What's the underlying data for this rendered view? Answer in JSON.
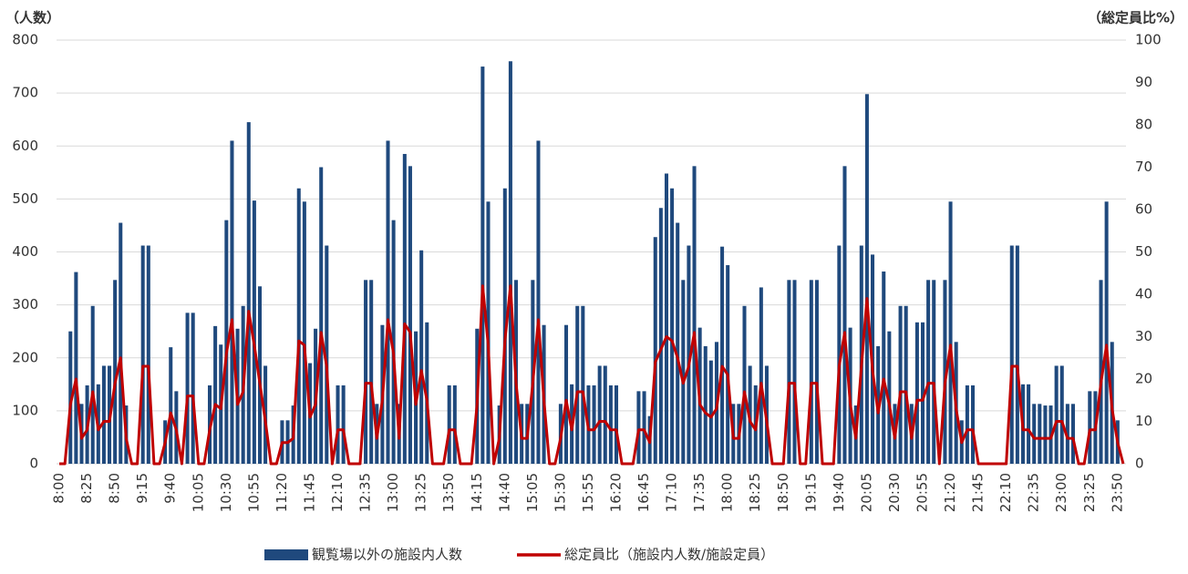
{
  "chart_data": {
    "type": "bar",
    "y_label": "（人数）",
    "y2_label": "（総定員比%）",
    "categories": [
      "8:00",
      null,
      null,
      null,
      null,
      "8:25",
      null,
      null,
      null,
      null,
      "8:50",
      null,
      null,
      null,
      null,
      "9:15",
      null,
      null,
      null,
      null,
      "9:40",
      null,
      null,
      null,
      null,
      "10:05",
      null,
      null,
      null,
      null,
      "10:30",
      null,
      null,
      null,
      null,
      "10:55",
      null,
      null,
      null,
      null,
      "11:20",
      null,
      null,
      null,
      null,
      "11:45",
      null,
      null,
      null,
      null,
      "12:10",
      null,
      null,
      null,
      null,
      "12:35",
      null,
      null,
      null,
      null,
      "13:00",
      null,
      null,
      null,
      null,
      "13:25",
      null,
      null,
      null,
      null,
      "13:50",
      null,
      null,
      null,
      null,
      "14:15",
      null,
      null,
      null,
      null,
      "14:40",
      null,
      null,
      null,
      null,
      "15:05",
      null,
      null,
      null,
      null,
      "15:30",
      null,
      null,
      null,
      null,
      "15:55",
      null,
      null,
      null,
      null,
      "16:20",
      null,
      null,
      null,
      null,
      "16:45",
      null,
      null,
      null,
      null,
      "17:10",
      null,
      null,
      null,
      null,
      "17:35",
      null,
      null,
      null,
      null,
      "18:00",
      null,
      null,
      null,
      null,
      "18:25",
      null,
      null,
      null,
      null,
      "18:50",
      null,
      null,
      null,
      null,
      "19:15",
      null,
      null,
      null,
      null,
      "19:40",
      null,
      null,
      null,
      null,
      "20:05",
      null,
      null,
      null,
      null,
      "20:30",
      null,
      null,
      null,
      null,
      "20:55",
      null,
      null,
      null,
      null,
      "21:20",
      null,
      null,
      null,
      null,
      "21:45",
      null,
      null,
      null,
      null,
      "22:10",
      null,
      null,
      null,
      null,
      "22:35",
      null,
      null,
      null,
      null,
      "23:00",
      null,
      null,
      null,
      null,
      "23:25",
      null,
      null,
      null,
      null,
      "23:50",
      null
    ],
    "series": [
      {
        "name": "観覧場以外の施設内人数",
        "type": "bar",
        "color": "#1f497d",
        "values": [
          0,
          0,
          250,
          362,
          113,
          148,
          298,
          150,
          185,
          185,
          347,
          455,
          110,
          0,
          0,
          412,
          412,
          0,
          0,
          82,
          220,
          137,
          0,
          285,
          285,
          0,
          0,
          148,
          260,
          225,
          460,
          610,
          255,
          298,
          645,
          497,
          335,
          185,
          0,
          0,
          82,
          82,
          110,
          520,
          495,
          190,
          255,
          560,
          412,
          0,
          148,
          148,
          0,
          0,
          0,
          347,
          347,
          113,
          262,
          610,
          460,
          113,
          585,
          562,
          250,
          403,
          267,
          0,
          0,
          0,
          148,
          148,
          0,
          0,
          0,
          255,
          750,
          495,
          0,
          110,
          520,
          760,
          347,
          113,
          113,
          347,
          610,
          262,
          0,
          0,
          113,
          262,
          150,
          298,
          298,
          148,
          148,
          185,
          185,
          148,
          148,
          0,
          0,
          0,
          137,
          137,
          90,
          428,
          483,
          548,
          520,
          455,
          347,
          412,
          562,
          257,
          222,
          195,
          230,
          410,
          375,
          113,
          113,
          298,
          185,
          148,
          333,
          185,
          0,
          0,
          0,
          347,
          347,
          0,
          0,
          347,
          347,
          0,
          0,
          0,
          412,
          562,
          257,
          110,
          412,
          698,
          395,
          222,
          363,
          250,
          113,
          298,
          298,
          113,
          267,
          267,
          347,
          347,
          0,
          347,
          495,
          230,
          82,
          148,
          148,
          0,
          0,
          0,
          0,
          0,
          0,
          412,
          412,
          150,
          150,
          113,
          113,
          110,
          110,
          185,
          185,
          113,
          113,
          0,
          0,
          137,
          137,
          347,
          495,
          230,
          82,
          0
        ]
      },
      {
        "name": "総定員比（施設内人数/施設定員）",
        "type": "line",
        "axis": "y2",
        "color": "#c00000",
        "values": [
          0,
          0,
          14,
          20,
          6,
          8,
          17,
          8,
          10,
          10,
          19,
          25,
          6,
          0,
          0,
          23,
          23,
          0,
          0,
          5,
          12,
          8,
          0,
          16,
          16,
          0,
          0,
          8,
          14,
          13,
          26,
          34,
          14,
          17,
          36,
          28,
          19,
          10,
          0,
          0,
          5,
          5,
          6,
          29,
          28,
          11,
          14,
          31,
          23,
          0,
          8,
          8,
          0,
          0,
          0,
          19,
          19,
          6,
          15,
          34,
          26,
          6,
          33,
          31,
          14,
          22,
          15,
          0,
          0,
          0,
          8,
          8,
          0,
          0,
          0,
          14,
          42,
          28,
          0,
          6,
          29,
          42,
          19,
          6,
          6,
          19,
          34,
          15,
          0,
          0,
          6,
          15,
          8,
          17,
          17,
          8,
          8,
          10,
          10,
          8,
          8,
          0,
          0,
          0,
          8,
          8,
          5,
          24,
          27,
          30,
          29,
          25,
          19,
          23,
          31,
          14,
          12,
          11,
          13,
          23,
          21,
          6,
          6,
          17,
          10,
          8,
          19,
          10,
          0,
          0,
          0,
          19,
          19,
          0,
          0,
          19,
          19,
          0,
          0,
          0,
          23,
          31,
          14,
          6,
          23,
          39,
          22,
          12,
          20,
          14,
          6,
          17,
          17,
          6,
          15,
          15,
          19,
          19,
          0,
          19,
          28,
          13,
          5,
          8,
          8,
          0,
          0,
          0,
          0,
          0,
          0,
          23,
          23,
          8,
          8,
          6,
          6,
          6,
          6,
          10,
          10,
          6,
          6,
          0,
          0,
          8,
          8,
          19,
          28,
          13,
          5,
          0
        ]
      }
    ],
    "ylim": [
      0,
      800
    ],
    "yticks": [
      0,
      100,
      200,
      300,
      400,
      500,
      600,
      700,
      800
    ],
    "y2lim": [
      0,
      100
    ],
    "y2ticks": [
      0,
      10,
      20,
      30,
      40,
      50,
      60,
      70,
      80,
      90,
      100
    ],
    "grid": true,
    "legend": "bottom"
  }
}
